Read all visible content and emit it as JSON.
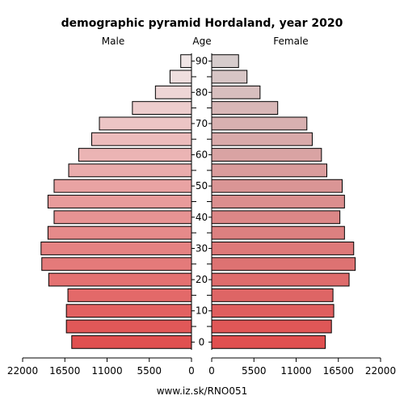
{
  "chart_data": {
    "type": "bar",
    "orientation": "horizontal",
    "title": "demographic pyramid Hordaland, year 2020",
    "left_label": "Male",
    "center_label": "Age",
    "right_label": "Female",
    "footer": "www.iz.sk/RNO051",
    "age_groups": [
      "0-4",
      "5-9",
      "10-14",
      "15-19",
      "20-24",
      "25-29",
      "30-34",
      "35-39",
      "40-44",
      "45-49",
      "50-54",
      "55-59",
      "60-64",
      "65-69",
      "70-74",
      "75-79",
      "80-84",
      "85-89",
      "90+"
    ],
    "age_ticks": [
      "0",
      "10",
      "20",
      "30",
      "40",
      "50",
      "60",
      "70",
      "80",
      "90"
    ],
    "x_ticks_left": [
      "22000",
      "16500",
      "11000",
      "5500",
      "0"
    ],
    "x_ticks_right": [
      "0",
      "5500",
      "11000",
      "16500",
      "22000"
    ],
    "xlim": [
      0,
      22000
    ],
    "series": [
      {
        "name": "Male",
        "values": [
          15600,
          16300,
          16300,
          16100,
          18600,
          19500,
          19600,
          18700,
          17900,
          18700,
          17900,
          16000,
          14700,
          13000,
          12000,
          7700,
          4700,
          2800,
          1400
        ]
      },
      {
        "name": "Female",
        "values": [
          14800,
          15600,
          15900,
          15800,
          17900,
          18700,
          18500,
          17300,
          16700,
          17300,
          17000,
          15000,
          14300,
          13100,
          12400,
          8600,
          6300,
          4600,
          3500
        ]
      }
    ],
    "colors": {
      "male_young": "#e05050",
      "male_old": "#f0e6e6",
      "female_young": "#e05050",
      "female_old": "#d6cccc",
      "outline": "#000000"
    }
  }
}
